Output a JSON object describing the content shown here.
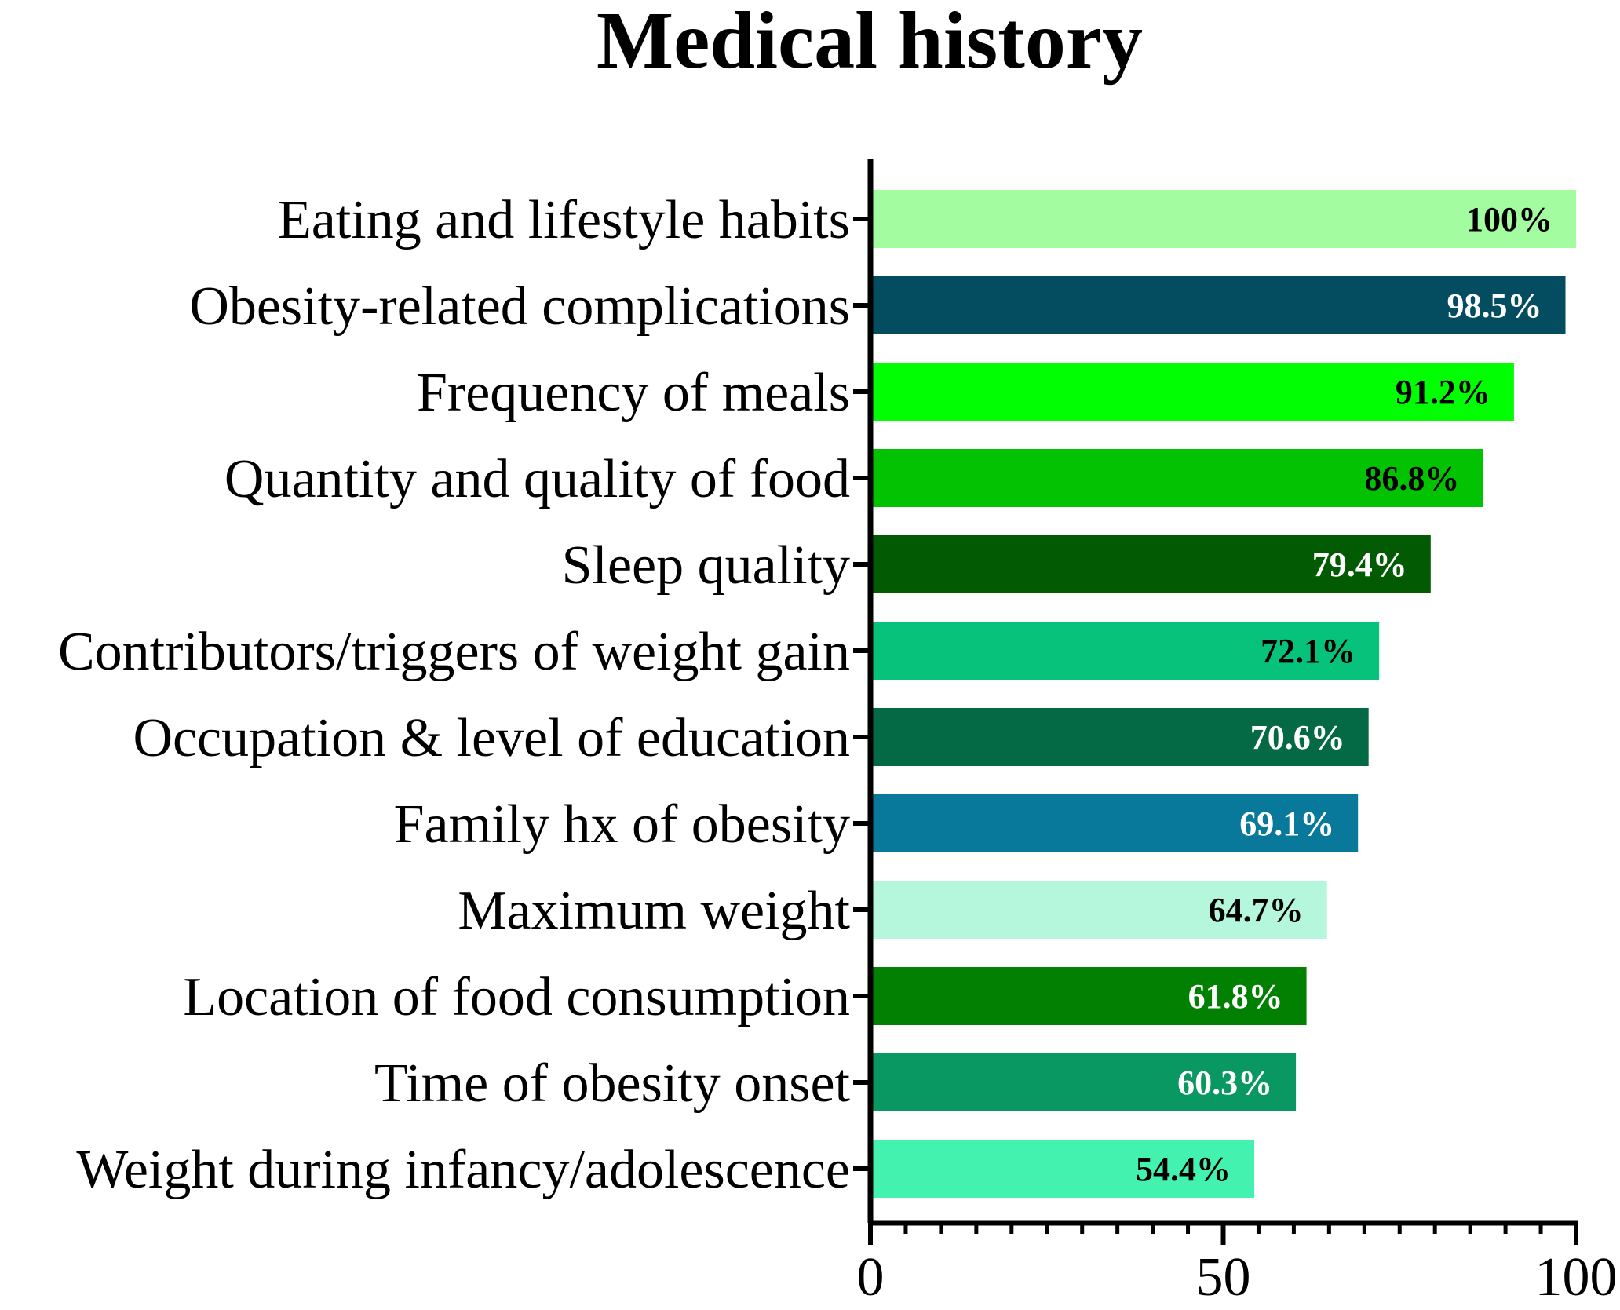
{
  "chart_data": {
    "type": "bar",
    "orientation": "horizontal",
    "title": "Medical history",
    "xlabel": "",
    "ylabel": "",
    "xlim": [
      0,
      100
    ],
    "x_ticks": [
      0,
      50,
      100
    ],
    "x_tick_labels": [
      "0",
      "50",
      "100"
    ],
    "minor_tick_step": 5,
    "grid": false,
    "categories": [
      "Eating and lifestyle habits",
      "Obesity-related complications",
      "Frequency of meals",
      "Quantity and quality of food",
      "Sleep quality",
      "Contributors/triggers of weight gain",
      "Occupation & level of education",
      "Family hx of obesity",
      "Maximum weight",
      "Location of food consumption",
      "Time of obesity onset",
      "Weight during infancy/adolescence"
    ],
    "values": [
      100,
      98.5,
      91.2,
      86.8,
      79.4,
      72.1,
      70.6,
      69.1,
      64.7,
      61.8,
      60.3,
      54.4
    ],
    "data_labels": [
      "100%",
      "98.5%",
      "91.2%",
      "86.8%",
      "79.4%",
      "72.1%",
      "70.6%",
      "69.1%",
      "64.7%",
      "61.8%",
      "60.3%",
      "54.4%"
    ],
    "bar_colors": [
      "#a3fc9f",
      "#044d60",
      "#02fe02",
      "#02c202",
      "#025b02",
      "#06c27a",
      "#046a45",
      "#08799a",
      "#b4f7dd",
      "#028002",
      "#099762",
      "#44f2b0"
    ],
    "label_colors": [
      "#000000",
      "#ffffff",
      "#000000",
      "#000000",
      "#ffffff",
      "#000000",
      "#ffffff",
      "#ffffff",
      "#000000",
      "#ffffff",
      "#ffffff",
      "#000000"
    ]
  }
}
